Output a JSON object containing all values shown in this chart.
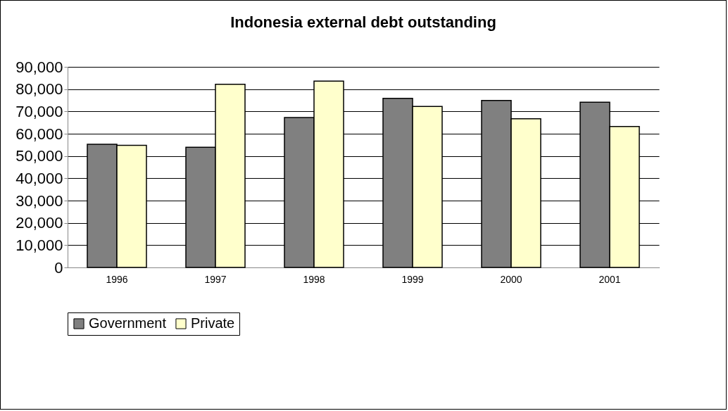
{
  "chart_data": {
    "type": "bar",
    "title": "Indonesia external debt outstanding",
    "categories": [
      "1996",
      "1997",
      "1998",
      "1999",
      "2000",
      "2001"
    ],
    "series": [
      {
        "name": "Government",
        "color": "#808080",
        "values": [
          55300,
          53900,
          67300,
          75900,
          74900,
          74100
        ]
      },
      {
        "name": "Private",
        "color": "#ffffcc",
        "values": [
          54800,
          82200,
          83600,
          72200,
          66700,
          63200
        ]
      }
    ],
    "ylim": [
      0,
      90000
    ],
    "yticks": [
      {
        "value": 0,
        "label": "0"
      },
      {
        "value": 10000,
        "label": "10,000"
      },
      {
        "value": 20000,
        "label": "20,000"
      },
      {
        "value": 30000,
        "label": "30,000"
      },
      {
        "value": 40000,
        "label": "40,000"
      },
      {
        "value": 50000,
        "label": "50,000"
      },
      {
        "value": 60000,
        "label": "60,000"
      },
      {
        "value": 70000,
        "label": "70,000"
      },
      {
        "value": 80000,
        "label": "80,000"
      },
      {
        "value": 90000,
        "label": "90,000"
      }
    ],
    "grid": "y",
    "legend": "bottom"
  }
}
